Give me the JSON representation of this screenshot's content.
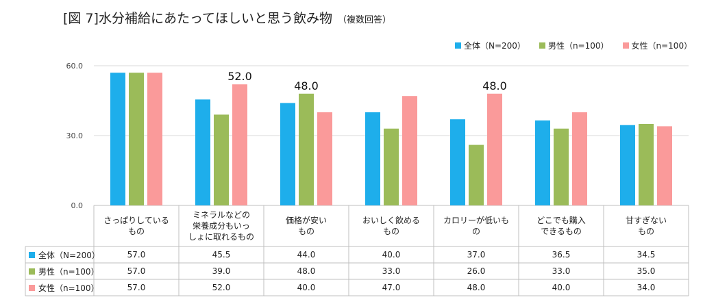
{
  "title": "[図 7]水分補給にあたってほしいと思う飲み物",
  "title_note": "（複数回答）",
  "chart_data": {
    "type": "bar",
    "ylim": [
      0,
      60
    ],
    "yticks": [
      "0.0",
      "30.0",
      "60.0"
    ],
    "ytick_values": [
      0,
      30,
      60
    ],
    "categories": [
      [
        "さっぱりしている",
        "もの"
      ],
      [
        "ミネラルなどの",
        "栄養成分もいっ",
        "しょに取れるもの"
      ],
      [
        "価格が安い",
        "もの"
      ],
      [
        "おいしく飲める",
        "もの"
      ],
      [
        "カロリーが低いも",
        "の"
      ],
      [
        "どこでも購入",
        "できるもの"
      ],
      [
        "甘すぎない",
        "もの"
      ]
    ],
    "series": [
      {
        "name": "全体（N=200）",
        "color": "#1EAEEB",
        "values": [
          57.0,
          45.5,
          44.0,
          40.0,
          37.0,
          36.5,
          34.5
        ],
        "table": [
          "57.0",
          "45.5",
          "44.0",
          "40.0",
          "37.0",
          "36.5",
          "34.5"
        ]
      },
      {
        "name": "男性（n=100）",
        "color": "#9BBB59",
        "values": [
          57.0,
          39.0,
          48.0,
          33.0,
          26.0,
          33.0,
          35.0
        ],
        "table": [
          "57.0",
          "39.0",
          "48.0",
          "33.0",
          "26.0",
          "33.0",
          "35.0"
        ]
      },
      {
        "name": "女性（n=100）",
        "color": "#FA9A9A",
        "values": [
          57.0,
          52.0,
          40.0,
          47.0,
          48.0,
          40.0,
          34.0
        ],
        "table": [
          "57.0",
          "52.0",
          "40.0",
          "47.0",
          "48.0",
          "40.0",
          "34.0"
        ]
      }
    ],
    "annotations": [
      {
        "series": 2,
        "category": 1,
        "text": "52.0"
      },
      {
        "series": 1,
        "category": 2,
        "text": "48.0"
      },
      {
        "series": 2,
        "category": 4,
        "text": "48.0"
      }
    ]
  }
}
